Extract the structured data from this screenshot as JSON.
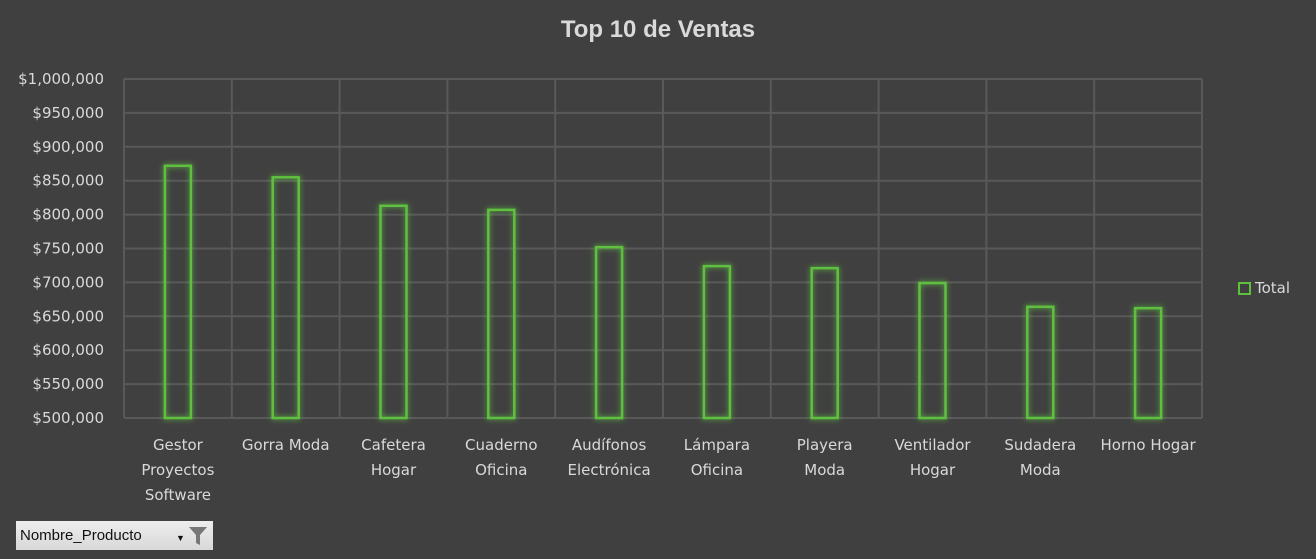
{
  "chart_data": {
    "type": "bar",
    "title": "Top 10  de Ventas",
    "categories": [
      [
        "Gestor",
        "Proyectos",
        "Software"
      ],
      [
        "Gorra Moda"
      ],
      [
        "Cafetera",
        "Hogar"
      ],
      [
        "Cuaderno",
        "Oficina"
      ],
      [
        "Audífonos",
        "Electrónica"
      ],
      [
        "Lámpara",
        "Oficina"
      ],
      [
        "Playera",
        "Moda"
      ],
      [
        "Ventilador",
        "Hogar"
      ],
      [
        "Sudadera",
        "Moda"
      ],
      [
        "Horno Hogar"
      ]
    ],
    "series": [
      {
        "name": "Total",
        "values": [
          872000,
          855000,
          813000,
          807000,
          752000,
          724000,
          721000,
          699000,
          664000,
          662000
        ]
      }
    ],
    "ylim": [
      500000,
      1000000
    ],
    "yticks": [
      "$500,000",
      "$550,000",
      "$600,000",
      "$650,000",
      "$700,000",
      "$750,000",
      "$800,000",
      "$850,000",
      "$900,000",
      "$950,000",
      "$1,000,000"
    ],
    "grid": true,
    "legend_position": "right",
    "bar_color": "#5fbf3f"
  },
  "filter": {
    "label": "Nombre_Producto",
    "icon": "funnel-icon"
  }
}
